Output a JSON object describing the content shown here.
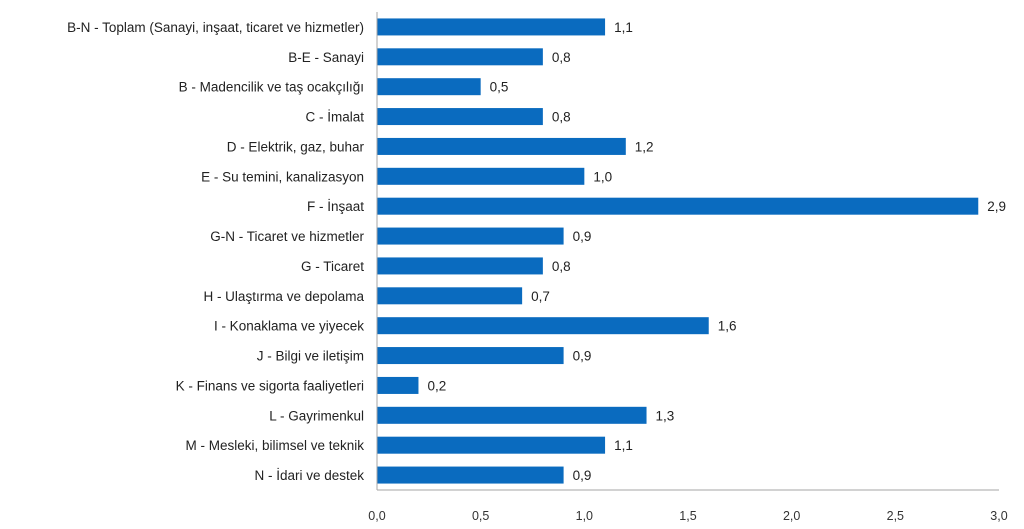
{
  "chart_data": {
    "type": "bar",
    "orientation": "horizontal",
    "title": "",
    "xlabel": "",
    "ylabel": "",
    "xlim": [
      0,
      3.0
    ],
    "grid": false,
    "legend": "none",
    "bar_color": "#0a6bbf",
    "categories": [
      "B-N - Toplam (Sanayi, inşaat, ticaret ve hizmetler)",
      "B-E - Sanayi",
      "B - Madencilik ve taş ocakçılığı",
      "C - İmalat",
      "D - Elektrik, gaz, buhar",
      "E - Su temini, kanalizasyon",
      "F - İnşaat",
      "G-N - Ticaret ve hizmetler",
      "G - Ticaret",
      "H - Ulaştırma ve depolama",
      "I - Konaklama ve yiyecek",
      "J - Bilgi ve iletişim",
      "K - Finans ve sigorta faaliyetleri",
      "L - Gayrimenkul",
      "M - Mesleki, bilimsel ve teknik",
      "N - İdari ve destek"
    ],
    "values": [
      1.1,
      0.8,
      0.5,
      0.8,
      1.2,
      1.0,
      2.9,
      0.9,
      0.8,
      0.7,
      1.6,
      0.9,
      0.2,
      1.3,
      1.1,
      0.9
    ],
    "value_labels": [
      "1,1",
      "0,8",
      "0,5",
      "0,8",
      "1,2",
      "1,0",
      "2,9",
      "0,9",
      "0,8",
      "0,7",
      "1,6",
      "0,9",
      "0,2",
      "1,3",
      "1,1",
      "0,9"
    ],
    "x_ticks": [
      0,
      0.5,
      1.0,
      1.5,
      2.0,
      2.5,
      3.0
    ],
    "x_tick_labels": [
      "0,0",
      "0,5",
      "1,0",
      "1,5",
      "2,0",
      "2,5",
      "3,0"
    ]
  }
}
